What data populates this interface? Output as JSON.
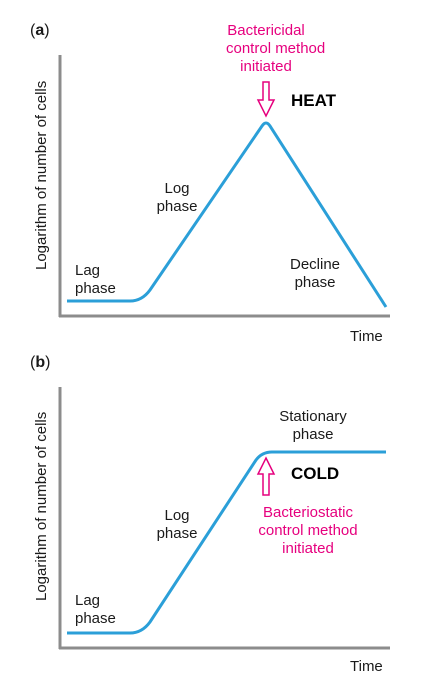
{
  "panel_a": {
    "label_open": "(",
    "label_letter": "a",
    "label_close": ")",
    "ylabel": "Logarithm of number of cells",
    "xlabel": "Time",
    "lag_line1": "Lag",
    "lag_line2": "phase",
    "log_line1": "Log",
    "log_line2": "phase",
    "decline_line1": "Decline",
    "decline_line2": "phase",
    "control_line1": "Bactericidal",
    "control_line2": "control method",
    "control_line3": "initiated",
    "agent": "HEAT",
    "colors": {
      "curve": "#2b9fd8",
      "control": "#e6007e",
      "axis": "#8c8c8c"
    }
  },
  "panel_b": {
    "label_open": "(",
    "label_letter": "b",
    "label_close": ")",
    "ylabel": "Logarithm of number of cells",
    "xlabel": "Time",
    "lag_line1": "Lag",
    "lag_line2": "phase",
    "log_line1": "Log",
    "log_line2": "phase",
    "stationary_line1": "Stationary",
    "stationary_line2": "phase",
    "control_line1": "Bacteriostatic",
    "control_line2": "control method",
    "control_line3": "initiated",
    "agent": "COLD",
    "colors": {
      "curve": "#2b9fd8",
      "control": "#e6007e",
      "axis": "#8c8c8c"
    }
  }
}
